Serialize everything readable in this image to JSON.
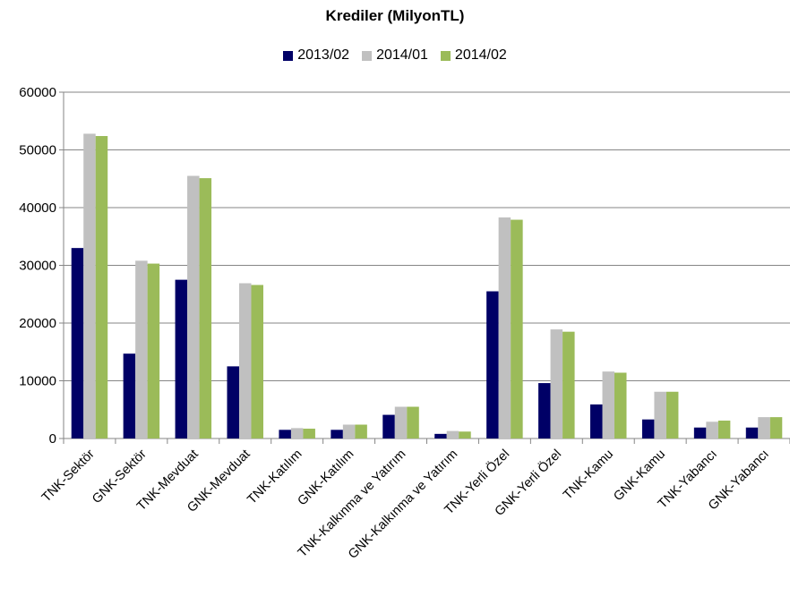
{
  "chart_data": {
    "type": "bar",
    "title": "Krediler (MilyonTL)",
    "xlabel": "",
    "ylabel": "",
    "ylim": [
      0,
      60000
    ],
    "yticks": [
      0,
      10000,
      20000,
      30000,
      40000,
      50000,
      60000
    ],
    "grid": true,
    "legend_position": "top",
    "categories": [
      "TNK-Sektör",
      "GNK-Sektör",
      "TNK-Mevduat",
      "GNK-Mevduat",
      "TNK-Katılım",
      "GNK-Katılım",
      "TNK-Kalkınma ve Yatırım",
      "GNK-Kalkınma ve Yatırım",
      "TNK-Yerli Özel",
      "GNK-Yerli Özel",
      "TNK-Kamu",
      "GNK-Kamu",
      "TNK-Yabancı",
      "GNK-Yabancı"
    ],
    "series": [
      {
        "name": "2013/02",
        "color": "#000066",
        "values": [
          33000,
          14700,
          27500,
          12500,
          1500,
          1500,
          4100,
          800,
          25500,
          9600,
          5900,
          3300,
          1900,
          1900
        ]
      },
      {
        "name": "2014/01",
        "color": "#C0C0C0",
        "values": [
          52800,
          30800,
          45500,
          26900,
          1800,
          2400,
          5500,
          1300,
          38300,
          18900,
          11600,
          8100,
          2900,
          3700
        ]
      },
      {
        "name": "2014/02",
        "color": "#9BBB59",
        "values": [
          52400,
          30300,
          45100,
          26600,
          1700,
          2400,
          5500,
          1200,
          37900,
          18500,
          11400,
          8100,
          3100,
          3700
        ]
      }
    ]
  }
}
